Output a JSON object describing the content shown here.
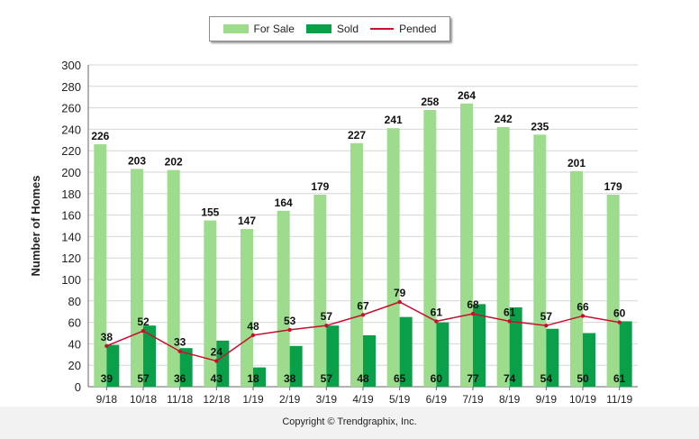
{
  "chart_data": {
    "type": "bar",
    "ylabel": "Number of Homes",
    "ylim": [
      0,
      300
    ],
    "yticks": [
      0,
      20,
      40,
      60,
      80,
      100,
      120,
      140,
      160,
      180,
      200,
      220,
      240,
      260,
      280,
      300
    ],
    "grid": true,
    "legend_position": "top-center",
    "categories": [
      "9/18",
      "10/18",
      "11/18",
      "12/18",
      "1/19",
      "2/19",
      "3/19",
      "4/19",
      "5/19",
      "6/19",
      "7/19",
      "8/19",
      "9/19",
      "10/19",
      "11/19"
    ],
    "series": [
      {
        "name": "For Sale",
        "type": "bar",
        "color": "#9ddc8c",
        "values": [
          226,
          203,
          202,
          155,
          147,
          164,
          179,
          227,
          241,
          258,
          264,
          242,
          235,
          201,
          179
        ]
      },
      {
        "name": "Sold",
        "type": "bar",
        "color": "#0aa04a",
        "values": [
          39,
          57,
          36,
          43,
          18,
          38,
          57,
          48,
          65,
          60,
          77,
          74,
          54,
          50,
          61
        ]
      },
      {
        "name": "Pended",
        "type": "line",
        "color": "#c8102e",
        "values": [
          38,
          52,
          33,
          24,
          48,
          53,
          57,
          67,
          79,
          61,
          68,
          61,
          57,
          66,
          60
        ]
      }
    ]
  },
  "copyright": "Copyright © Trendgraphix, Inc."
}
